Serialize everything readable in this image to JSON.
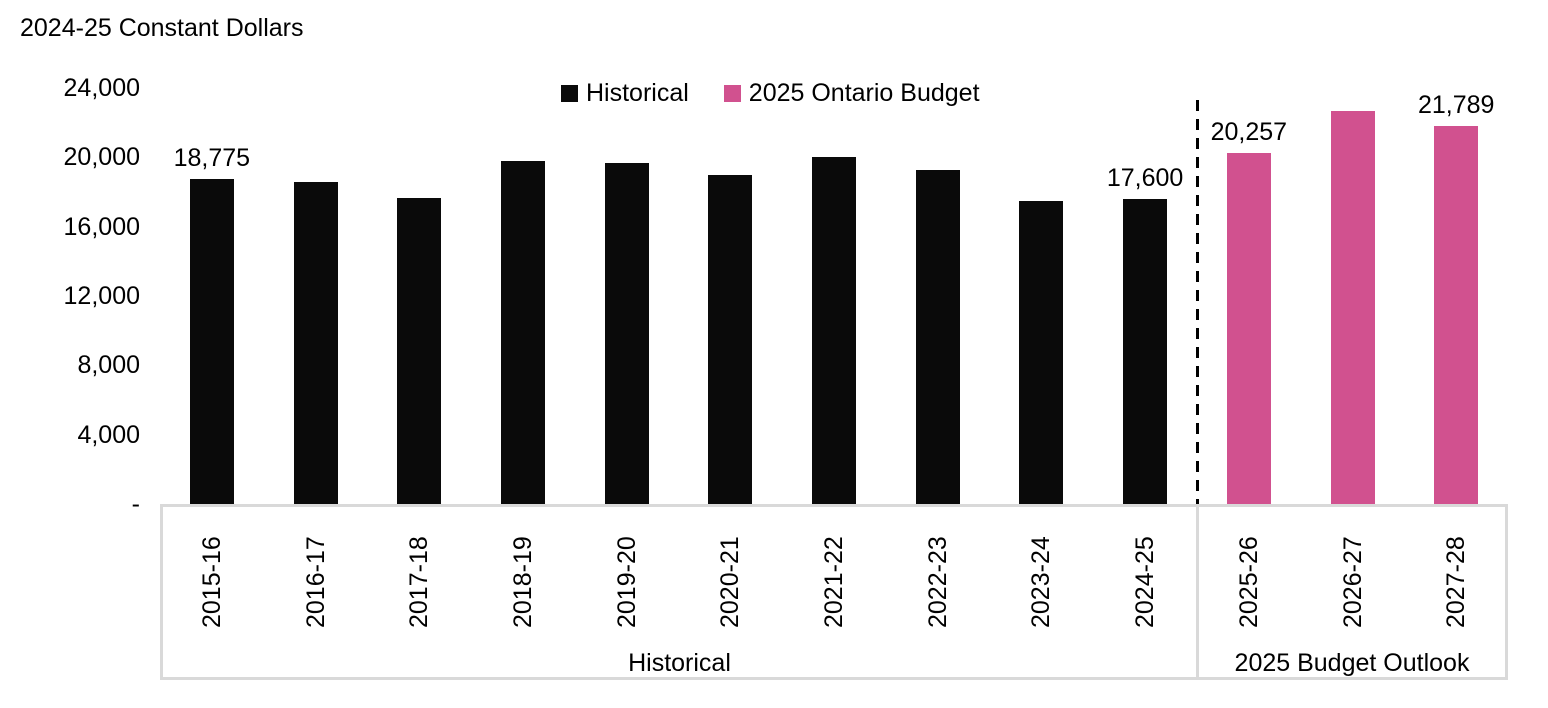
{
  "chart_data": {
    "type": "bar",
    "title": "2024-25 Constant Dollars",
    "categories": [
      "2015-16",
      "2016-17",
      "2017-18",
      "2018-19",
      "2019-20",
      "2020-21",
      "2021-22",
      "2022-23",
      "2023-24",
      "2024-25",
      "2025-26",
      "2026-27",
      "2027-28"
    ],
    "series": [
      {
        "name": "Historical",
        "color": "#0a0a0a",
        "values": [
          18775,
          18600,
          17650,
          19800,
          19700,
          19000,
          20000,
          19250,
          17500,
          17600,
          null,
          null,
          null
        ]
      },
      {
        "name": "2025 Ontario Budget",
        "color": "#d1518f",
        "values": [
          null,
          null,
          null,
          null,
          null,
          null,
          null,
          null,
          null,
          null,
          20257,
          22650,
          21789
        ]
      }
    ],
    "bar_labels": [
      "18,775",
      null,
      null,
      null,
      null,
      null,
      null,
      null,
      null,
      "17,600",
      "20,257",
      null,
      "21,789"
    ],
    "y_ticks": [
      "24,000",
      "20,000",
      "16,000",
      "12,000",
      "8,000",
      "4,000",
      "-"
    ],
    "y_tick_values": [
      24000,
      20000,
      16000,
      12000,
      8000,
      4000,
      0
    ],
    "ylim": [
      0,
      24000
    ],
    "grid": false,
    "legend_position": "top-center",
    "groups": [
      {
        "label": "Historical",
        "span": [
          0,
          9
        ]
      },
      {
        "label": "2025 Budget Outlook",
        "span": [
          10,
          12
        ]
      }
    ]
  }
}
